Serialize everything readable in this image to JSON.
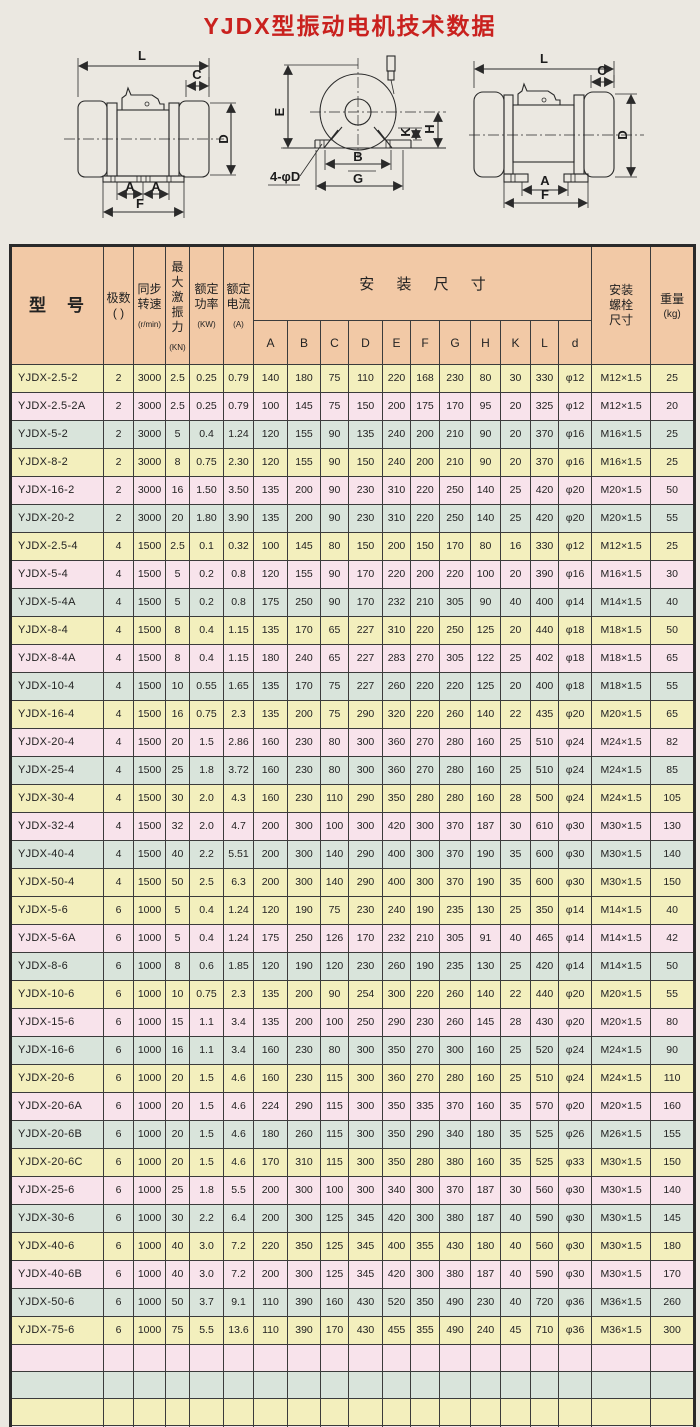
{
  "page": {
    "bg": "#ebe8e1"
  },
  "title": {
    "text": "YJDX型振动电机技术数据",
    "color": "#c9211e"
  },
  "diagram_labels": {
    "L": "L",
    "C": "C",
    "D": "D",
    "A": "A",
    "F": "F",
    "E": "E",
    "B": "B",
    "G": "G",
    "K": "K",
    "H": "H",
    "bolt_callout": "4-φD"
  },
  "table": {
    "colors": {
      "header_bg": "#f2c9a6",
      "row_yellow": "#f3efbd",
      "row_pink": "#f8e3eb",
      "row_green": "#d9e4db",
      "border": "#3b3b3b"
    },
    "header": {
      "model": {
        "label": "型　号"
      },
      "poles": {
        "label": "极数\n(  )"
      },
      "speed": {
        "label": "同步\n转速",
        "unit": "(r/min)"
      },
      "force": {
        "label": "最大\n激振\n力",
        "unit": "(KN)"
      },
      "power": {
        "label": "额定\n功率",
        "unit": "(KW)"
      },
      "current": {
        "label": "额定\n电流",
        "unit": "(A)"
      },
      "mount_group": "安 装 尺 寸",
      "mount_cols": [
        "A",
        "B",
        "C",
        "D",
        "E",
        "F",
        "G",
        "H",
        "K",
        "L",
        "d"
      ],
      "bolt": {
        "label": "安装\n螺栓\n尺寸"
      },
      "weight": {
        "label": "重量",
        "unit": "(kg)"
      }
    },
    "rows": [
      {
        "c": "y",
        "v": [
          "YJDX-2.5-2",
          "2",
          "3000",
          "2.5",
          "0.25",
          "0.79",
          "140",
          "180",
          "75",
          "110",
          "220",
          "168",
          "230",
          "80",
          "30",
          "330",
          "φ12",
          "M12×1.5",
          "25"
        ]
      },
      {
        "c": "p",
        "v": [
          "YJDX-2.5-2A",
          "2",
          "3000",
          "2.5",
          "0.25",
          "0.79",
          "100",
          "145",
          "75",
          "150",
          "200",
          "175",
          "170",
          "95",
          "20",
          "325",
          "φ12",
          "M12×1.5",
          "20"
        ]
      },
      {
        "c": "g",
        "v": [
          "YJDX-5-2",
          "2",
          "3000",
          "5",
          "0.4",
          "1.24",
          "120",
          "155",
          "90",
          "135",
          "240",
          "200",
          "210",
          "90",
          "20",
          "370",
          "φ16",
          "M16×1.5",
          "25"
        ]
      },
      {
        "c": "y",
        "v": [
          "YJDX-8-2",
          "2",
          "3000",
          "8",
          "0.75",
          "2.30",
          "120",
          "155",
          "90",
          "150",
          "240",
          "200",
          "210",
          "90",
          "20",
          "370",
          "φ16",
          "M16×1.5",
          "25"
        ]
      },
      {
        "c": "p",
        "v": [
          "YJDX-16-2",
          "2",
          "3000",
          "16",
          "1.50",
          "3.50",
          "135",
          "200",
          "90",
          "230",
          "310",
          "220",
          "250",
          "140",
          "25",
          "420",
          "φ20",
          "M20×1.5",
          "50"
        ]
      },
      {
        "c": "g",
        "v": [
          "YJDX-20-2",
          "2",
          "3000",
          "20",
          "1.80",
          "3.90",
          "135",
          "200",
          "90",
          "230",
          "310",
          "220",
          "250",
          "140",
          "25",
          "420",
          "φ20",
          "M20×1.5",
          "55"
        ]
      },
      {
        "c": "y",
        "v": [
          "YJDX-2.5-4",
          "4",
          "1500",
          "2.5",
          "0.1",
          "0.32",
          "100",
          "145",
          "80",
          "150",
          "200",
          "150",
          "170",
          "80",
          "16",
          "330",
          "φ12",
          "M12×1.5",
          "25"
        ]
      },
      {
        "c": "p",
        "v": [
          "YJDX-5-4",
          "4",
          "1500",
          "5",
          "0.2",
          "0.8",
          "120",
          "155",
          "90",
          "170",
          "220",
          "200",
          "220",
          "100",
          "20",
          "390",
          "φ16",
          "M16×1.5",
          "30"
        ]
      },
      {
        "c": "g",
        "v": [
          "YJDX-5-4A",
          "4",
          "1500",
          "5",
          "0.2",
          "0.8",
          "175",
          "250",
          "90",
          "170",
          "232",
          "210",
          "305",
          "90",
          "40",
          "400",
          "φ14",
          "M14×1.5",
          "40"
        ]
      },
      {
        "c": "y",
        "v": [
          "YJDX-8-4",
          "4",
          "1500",
          "8",
          "0.4",
          "1.15",
          "135",
          "170",
          "65",
          "227",
          "310",
          "220",
          "250",
          "125",
          "20",
          "440",
          "φ18",
          "M18×1.5",
          "50"
        ]
      },
      {
        "c": "p",
        "v": [
          "YJDX-8-4A",
          "4",
          "1500",
          "8",
          "0.4",
          "1.15",
          "180",
          "240",
          "65",
          "227",
          "283",
          "270",
          "305",
          "122",
          "25",
          "402",
          "φ18",
          "M18×1.5",
          "65"
        ]
      },
      {
        "c": "g",
        "v": [
          "YJDX-10-4",
          "4",
          "1500",
          "10",
          "0.55",
          "1.65",
          "135",
          "170",
          "75",
          "227",
          "260",
          "220",
          "220",
          "125",
          "20",
          "400",
          "φ18",
          "M18×1.5",
          "55"
        ]
      },
      {
        "c": "y",
        "v": [
          "YJDX-16-4",
          "4",
          "1500",
          "16",
          "0.75",
          "2.3",
          "135",
          "200",
          "75",
          "290",
          "320",
          "220",
          "260",
          "140",
          "22",
          "435",
          "φ20",
          "M20×1.5",
          "65"
        ]
      },
      {
        "c": "p",
        "v": [
          "YJDX-20-4",
          "4",
          "1500",
          "20",
          "1.5",
          "2.86",
          "160",
          "230",
          "80",
          "300",
          "360",
          "270",
          "280",
          "160",
          "25",
          "510",
          "φ24",
          "M24×1.5",
          "82"
        ]
      },
      {
        "c": "g",
        "v": [
          "YJDX-25-4",
          "4",
          "1500",
          "25",
          "1.8",
          "3.72",
          "160",
          "230",
          "80",
          "300",
          "360",
          "270",
          "280",
          "160",
          "25",
          "510",
          "φ24",
          "M24×1.5",
          "85"
        ]
      },
      {
        "c": "y",
        "v": [
          "YJDX-30-4",
          "4",
          "1500",
          "30",
          "2.0",
          "4.3",
          "160",
          "230",
          "110",
          "290",
          "350",
          "280",
          "280",
          "160",
          "28",
          "500",
          "φ24",
          "M24×1.5",
          "105"
        ]
      },
      {
        "c": "p",
        "v": [
          "YJDX-32-4",
          "4",
          "1500",
          "32",
          "2.0",
          "4.7",
          "200",
          "300",
          "100",
          "300",
          "420",
          "300",
          "370",
          "187",
          "30",
          "610",
          "φ30",
          "M30×1.5",
          "130"
        ]
      },
      {
        "c": "g",
        "v": [
          "YJDX-40-4",
          "4",
          "1500",
          "40",
          "2.2",
          "5.51",
          "200",
          "300",
          "140",
          "290",
          "400",
          "300",
          "370",
          "190",
          "35",
          "600",
          "φ30",
          "M30×1.5",
          "140"
        ]
      },
      {
        "c": "y",
        "v": [
          "YJDX-50-4",
          "4",
          "1500",
          "50",
          "2.5",
          "6.3",
          "200",
          "300",
          "140",
          "290",
          "400",
          "300",
          "370",
          "190",
          "35",
          "600",
          "φ30",
          "M30×1.5",
          "150"
        ]
      },
      {
        "c": "y",
        "v": [
          "YJDX-5-6",
          "6",
          "1000",
          "5",
          "0.4",
          "1.24",
          "120",
          "190",
          "75",
          "230",
          "240",
          "190",
          "235",
          "130",
          "25",
          "350",
          "φ14",
          "M14×1.5",
          "40"
        ]
      },
      {
        "c": "p",
        "v": [
          "YJDX-5-6A",
          "6",
          "1000",
          "5",
          "0.4",
          "1.24",
          "175",
          "250",
          "126",
          "170",
          "232",
          "210",
          "305",
          "91",
          "40",
          "465",
          "φ14",
          "M14×1.5",
          "42"
        ]
      },
      {
        "c": "g",
        "v": [
          "YJDX-8-6",
          "6",
          "1000",
          "8",
          "0.6",
          "1.85",
          "120",
          "190",
          "120",
          "230",
          "260",
          "190",
          "235",
          "130",
          "25",
          "420",
          "φ14",
          "M14×1.5",
          "50"
        ]
      },
      {
        "c": "y",
        "v": [
          "YJDX-10-6",
          "6",
          "1000",
          "10",
          "0.75",
          "2.3",
          "135",
          "200",
          "90",
          "254",
          "300",
          "220",
          "260",
          "140",
          "22",
          "440",
          "φ20",
          "M20×1.5",
          "55"
        ]
      },
      {
        "c": "p",
        "v": [
          "YJDX-15-6",
          "6",
          "1000",
          "15",
          "1.1",
          "3.4",
          "135",
          "200",
          "100",
          "250",
          "290",
          "230",
          "260",
          "145",
          "28",
          "430",
          "φ20",
          "M20×1.5",
          "80"
        ]
      },
      {
        "c": "g",
        "v": [
          "YJDX-16-6",
          "6",
          "1000",
          "16",
          "1.1",
          "3.4",
          "160",
          "230",
          "80",
          "300",
          "350",
          "270",
          "300",
          "160",
          "25",
          "520",
          "φ24",
          "M24×1.5",
          "90"
        ]
      },
      {
        "c": "y",
        "v": [
          "YJDX-20-6",
          "6",
          "1000",
          "20",
          "1.5",
          "4.6",
          "160",
          "230",
          "115",
          "300",
          "360",
          "270",
          "280",
          "160",
          "25",
          "510",
          "φ24",
          "M24×1.5",
          "110"
        ]
      },
      {
        "c": "p",
        "v": [
          "YJDX-20-6A",
          "6",
          "1000",
          "20",
          "1.5",
          "4.6",
          "224",
          "290",
          "115",
          "300",
          "350",
          "335",
          "370",
          "160",
          "35",
          "570",
          "φ20",
          "M20×1.5",
          "160"
        ]
      },
      {
        "c": "g",
        "v": [
          "YJDX-20-6B",
          "6",
          "1000",
          "20",
          "1.5",
          "4.6",
          "180",
          "260",
          "115",
          "300",
          "350",
          "290",
          "340",
          "180",
          "35",
          "525",
          "φ26",
          "M26×1.5",
          "155"
        ]
      },
      {
        "c": "y",
        "v": [
          "YJDX-20-6C",
          "6",
          "1000",
          "20",
          "1.5",
          "4.6",
          "170",
          "310",
          "115",
          "300",
          "350",
          "280",
          "380",
          "160",
          "35",
          "525",
          "φ33",
          "M30×1.5",
          "150"
        ]
      },
      {
        "c": "p",
        "v": [
          "YJDX-25-6",
          "6",
          "1000",
          "25",
          "1.8",
          "5.5",
          "200",
          "300",
          "100",
          "300",
          "340",
          "300",
          "370",
          "187",
          "30",
          "560",
          "φ30",
          "M30×1.5",
          "140"
        ]
      },
      {
        "c": "g",
        "v": [
          "YJDX-30-6",
          "6",
          "1000",
          "30",
          "2.2",
          "6.4",
          "200",
          "300",
          "125",
          "345",
          "420",
          "300",
          "380",
          "187",
          "40",
          "590",
          "φ30",
          "M30×1.5",
          "145"
        ]
      },
      {
        "c": "y",
        "v": [
          "YJDX-40-6",
          "6",
          "1000",
          "40",
          "3.0",
          "7.2",
          "220",
          "350",
          "125",
          "345",
          "400",
          "355",
          "430",
          "180",
          "40",
          "560",
          "φ30",
          "M30×1.5",
          "180"
        ]
      },
      {
        "c": "p",
        "v": [
          "YJDX-40-6B",
          "6",
          "1000",
          "40",
          "3.0",
          "7.2",
          "200",
          "300",
          "125",
          "345",
          "420",
          "300",
          "380",
          "187",
          "40",
          "590",
          "φ30",
          "M30×1.5",
          "170"
        ]
      },
      {
        "c": "g",
        "v": [
          "YJDX-50-6",
          "6",
          "1000",
          "50",
          "3.7",
          "9.1",
          "110",
          "390",
          "160",
          "430",
          "520",
          "350",
          "490",
          "230",
          "40",
          "720",
          "φ36",
          "M36×1.5",
          "260"
        ]
      },
      {
        "c": "y",
        "v": [
          "YJDX-75-6",
          "6",
          "1000",
          "75",
          "5.5",
          "13.6",
          "110",
          "390",
          "170",
          "430",
          "455",
          "355",
          "490",
          "240",
          "45",
          "710",
          "φ36",
          "M36×1.5",
          "300"
        ]
      }
    ],
    "empty_rows": [
      "p",
      "g",
      "y",
      "p"
    ]
  }
}
